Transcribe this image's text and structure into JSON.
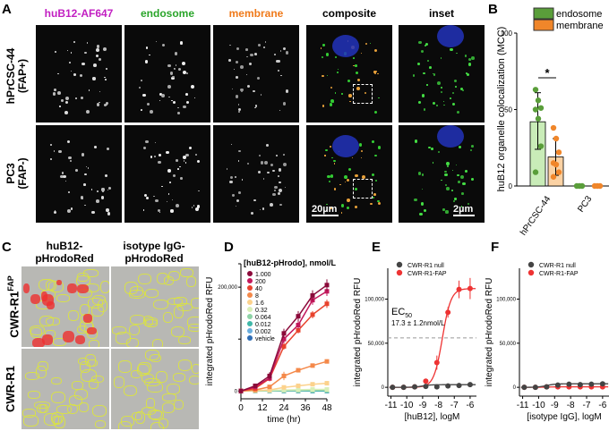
{
  "panels": {
    "A": "A",
    "B": "B",
    "C": "C",
    "D": "D",
    "E": "E",
    "F": "F"
  },
  "panelA": {
    "columns": [
      "huB12-AF647",
      "endosome",
      "membrane",
      "composite",
      "inset"
    ],
    "column_colors": [
      "#c21fc2",
      "#2aa52a",
      "#f07a1a",
      "#000000",
      "#000000"
    ],
    "rows": [
      {
        "line1": "hPrCSC-44",
        "line2": "(FAP+)"
      },
      {
        "line1": "PC3",
        "line2": "(FAP-)"
      }
    ],
    "scalebar_main": "20µm",
    "scalebar_inset": "2µm"
  },
  "panelC": {
    "columns": [
      {
        "line1": "huB12-",
        "line2": "pHrodoRed"
      },
      {
        "line1": "isotype IgG-",
        "line2": "pHrodoRed"
      }
    ],
    "rows": [
      {
        "label": "CWR-R1",
        "sup": "FAP"
      },
      {
        "label": "CWR-R1",
        "sup": ""
      }
    ]
  },
  "chart_data": [
    {
      "id": "B",
      "type": "bar",
      "ylabel": "huB12 organelle colocalization (MCC)",
      "categories": [
        "hPrCSC-44",
        "PC3"
      ],
      "ylim": [
        0,
        100
      ],
      "yticks": [
        0,
        50,
        100
      ],
      "series": [
        {
          "name": "endosome",
          "color": "#5a9e3a",
          "fill": "#c9ecb8",
          "values": [
            42,
            0
          ],
          "err_low": [
            24,
            0
          ],
          "err_high": [
            61,
            0
          ],
          "points": [
            [
              63,
              56,
              51,
              50,
              44,
              26,
              9
            ],
            [
              0,
              0,
              0
            ]
          ]
        },
        {
          "name": "membrane",
          "color": "#f0862a",
          "fill": "#fbd2a4",
          "values": [
            19,
            0
          ],
          "err_low": [
            7,
            0
          ],
          "err_high": [
            31,
            0
          ],
          "points": [
            [
              38,
              31,
              22,
              15,
              14,
              9,
              6
            ],
            [
              0,
              0,
              0
            ]
          ]
        }
      ],
      "annotation": "*",
      "legend": "top-right"
    },
    {
      "id": "D",
      "type": "line",
      "title": "[huB12-pHrodo], nmol/L",
      "xlabel": "time (hr)",
      "ylabel": "integrated pHrodoRed RFU",
      "xlim": [
        0,
        48
      ],
      "ylim": [
        -15000,
        245000
      ],
      "xticks": [
        0,
        12,
        24,
        36,
        48
      ],
      "yticks": [
        0,
        100000,
        200000
      ],
      "ytick_labels": [
        "0",
        "",
        "200,000"
      ],
      "x": [
        0,
        8,
        16,
        24,
        32,
        40,
        48
      ],
      "series": [
        {
          "name": "1.000",
          "color": "#8b0a3a",
          "values": [
            0,
            10000,
            29000,
            111000,
            144000,
            184000,
            204000
          ],
          "err": [
            0,
            4000,
            7000,
            9000,
            10000,
            10000,
            11000
          ]
        },
        {
          "name": "200",
          "color": "#c2185b",
          "values": [
            0,
            8000,
            25000,
            100000,
            127000,
            175000,
            192000
          ],
          "err": [
            0,
            3000,
            6000,
            8000,
            8000,
            9000,
            9000
          ]
        },
        {
          "name": "40",
          "color": "#e8432d",
          "values": [
            0,
            5000,
            24000,
            86000,
            117000,
            147000,
            168000
          ],
          "err": [
            0,
            3000,
            5000,
            6000,
            6000,
            7000,
            8000
          ]
        },
        {
          "name": "8",
          "color": "#f4894a",
          "values": [
            0,
            2000,
            8000,
            29000,
            40000,
            49000,
            57000
          ],
          "err": [
            0,
            1000,
            3000,
            8000,
            3000,
            4000,
            4000
          ]
        },
        {
          "name": "1.6",
          "color": "#fcd28c",
          "values": [
            0,
            1000,
            2000,
            7000,
            10000,
            13000,
            15000
          ],
          "err": [
            0,
            500,
            1000,
            1500,
            1500,
            2000,
            2000
          ]
        },
        {
          "name": "0.32",
          "color": "#d9efb8",
          "values": [
            0,
            500,
            1000,
            2000,
            2500,
            3000,
            3000
          ],
          "err": [
            0,
            0,
            0,
            0,
            0,
            0,
            0
          ]
        },
        {
          "name": "0.064",
          "color": "#8ed3a6",
          "values": [
            0,
            300,
            500,
            1000,
            1000,
            1500,
            1500
          ],
          "err": [
            0,
            0,
            0,
            0,
            0,
            0,
            0
          ]
        },
        {
          "name": "0.012",
          "color": "#3fb8a8",
          "values": [
            0,
            200,
            300,
            500,
            500,
            500,
            500
          ],
          "err": [
            0,
            0,
            0,
            0,
            0,
            0,
            0
          ]
        },
        {
          "name": "0.002",
          "color": "#6aaede",
          "values": [
            0,
            0,
            200,
            300,
            300,
            300,
            300
          ],
          "err": [
            0,
            0,
            0,
            0,
            0,
            0,
            0
          ]
        },
        {
          "name": "vehicle",
          "color": "#2f6db5",
          "values": [
            0,
            0,
            0,
            0,
            0,
            0,
            0
          ],
          "err": [
            0,
            0,
            0,
            0,
            0,
            0,
            0
          ]
        }
      ]
    },
    {
      "id": "E",
      "type": "scatter",
      "xlabel": "[huB12], logM",
      "ylabel": "integrated pHrodoRed RFU",
      "xlim": [
        -11.2,
        -5.6
      ],
      "ylim": [
        -10000,
        135000
      ],
      "xticks": [
        -11,
        -10,
        -9,
        -8,
        -7,
        -6
      ],
      "yticks": [
        0,
        50000,
        100000
      ],
      "ytick_labels": [
        "0",
        "50,000",
        "100,000"
      ],
      "x": [
        -10.9,
        -10.2,
        -9.5,
        -8.8,
        -8.1,
        -7.4,
        -6.7,
        -6.0
      ],
      "series": [
        {
          "name": "CWR-R1 null",
          "color": "#444444",
          "values": [
            0,
            0,
            500,
            1000,
            500,
            1500,
            2000,
            3000
          ],
          "err": [
            0,
            0,
            0,
            0,
            0,
            0,
            0,
            0
          ]
        },
        {
          "name": "CWR-R1-FAP",
          "color": "#ee3333",
          "values": [
            0,
            0,
            500,
            7000,
            28000,
            85000,
            111000,
            112000
          ],
          "err": [
            0,
            0,
            0,
            0,
            8000,
            6000,
            10000,
            12000
          ]
        }
      ],
      "reference_line": 56000,
      "annotation": {
        "ec": "EC",
        "sub": "50",
        "value": "17.3 ± 1.2nmol/L"
      }
    },
    {
      "id": "F",
      "type": "scatter",
      "xlabel": "[isotype IgG], logM",
      "ylabel": "integrated pHrodoRed RFU",
      "xlim": [
        -11.2,
        -5.6
      ],
      "ylim": [
        -10000,
        135000
      ],
      "xticks": [
        -11,
        -10,
        -9,
        -8,
        -7,
        -6
      ],
      "yticks": [
        0,
        50000,
        100000
      ],
      "ytick_labels": [
        "0",
        "50,000",
        "100,000"
      ],
      "x": [
        -10.9,
        -10.2,
        -9.5,
        -8.8,
        -8.1,
        -7.4,
        -6.7,
        -6.0
      ],
      "series": [
        {
          "name": "CWR-R1 null",
          "color": "#444444",
          "values": [
            0,
            0,
            500,
            2500,
            3500,
            3000,
            3500,
            4000
          ],
          "err": [
            0,
            0,
            0,
            0,
            0,
            0,
            0,
            0
          ]
        },
        {
          "name": "CWR-R1-FAP",
          "color": "#ee3333",
          "values": [
            0,
            0,
            500,
            500,
            500,
            500,
            500,
            500
          ],
          "err": [
            0,
            0,
            0,
            0,
            0,
            0,
            0,
            0
          ]
        }
      ]
    }
  ]
}
